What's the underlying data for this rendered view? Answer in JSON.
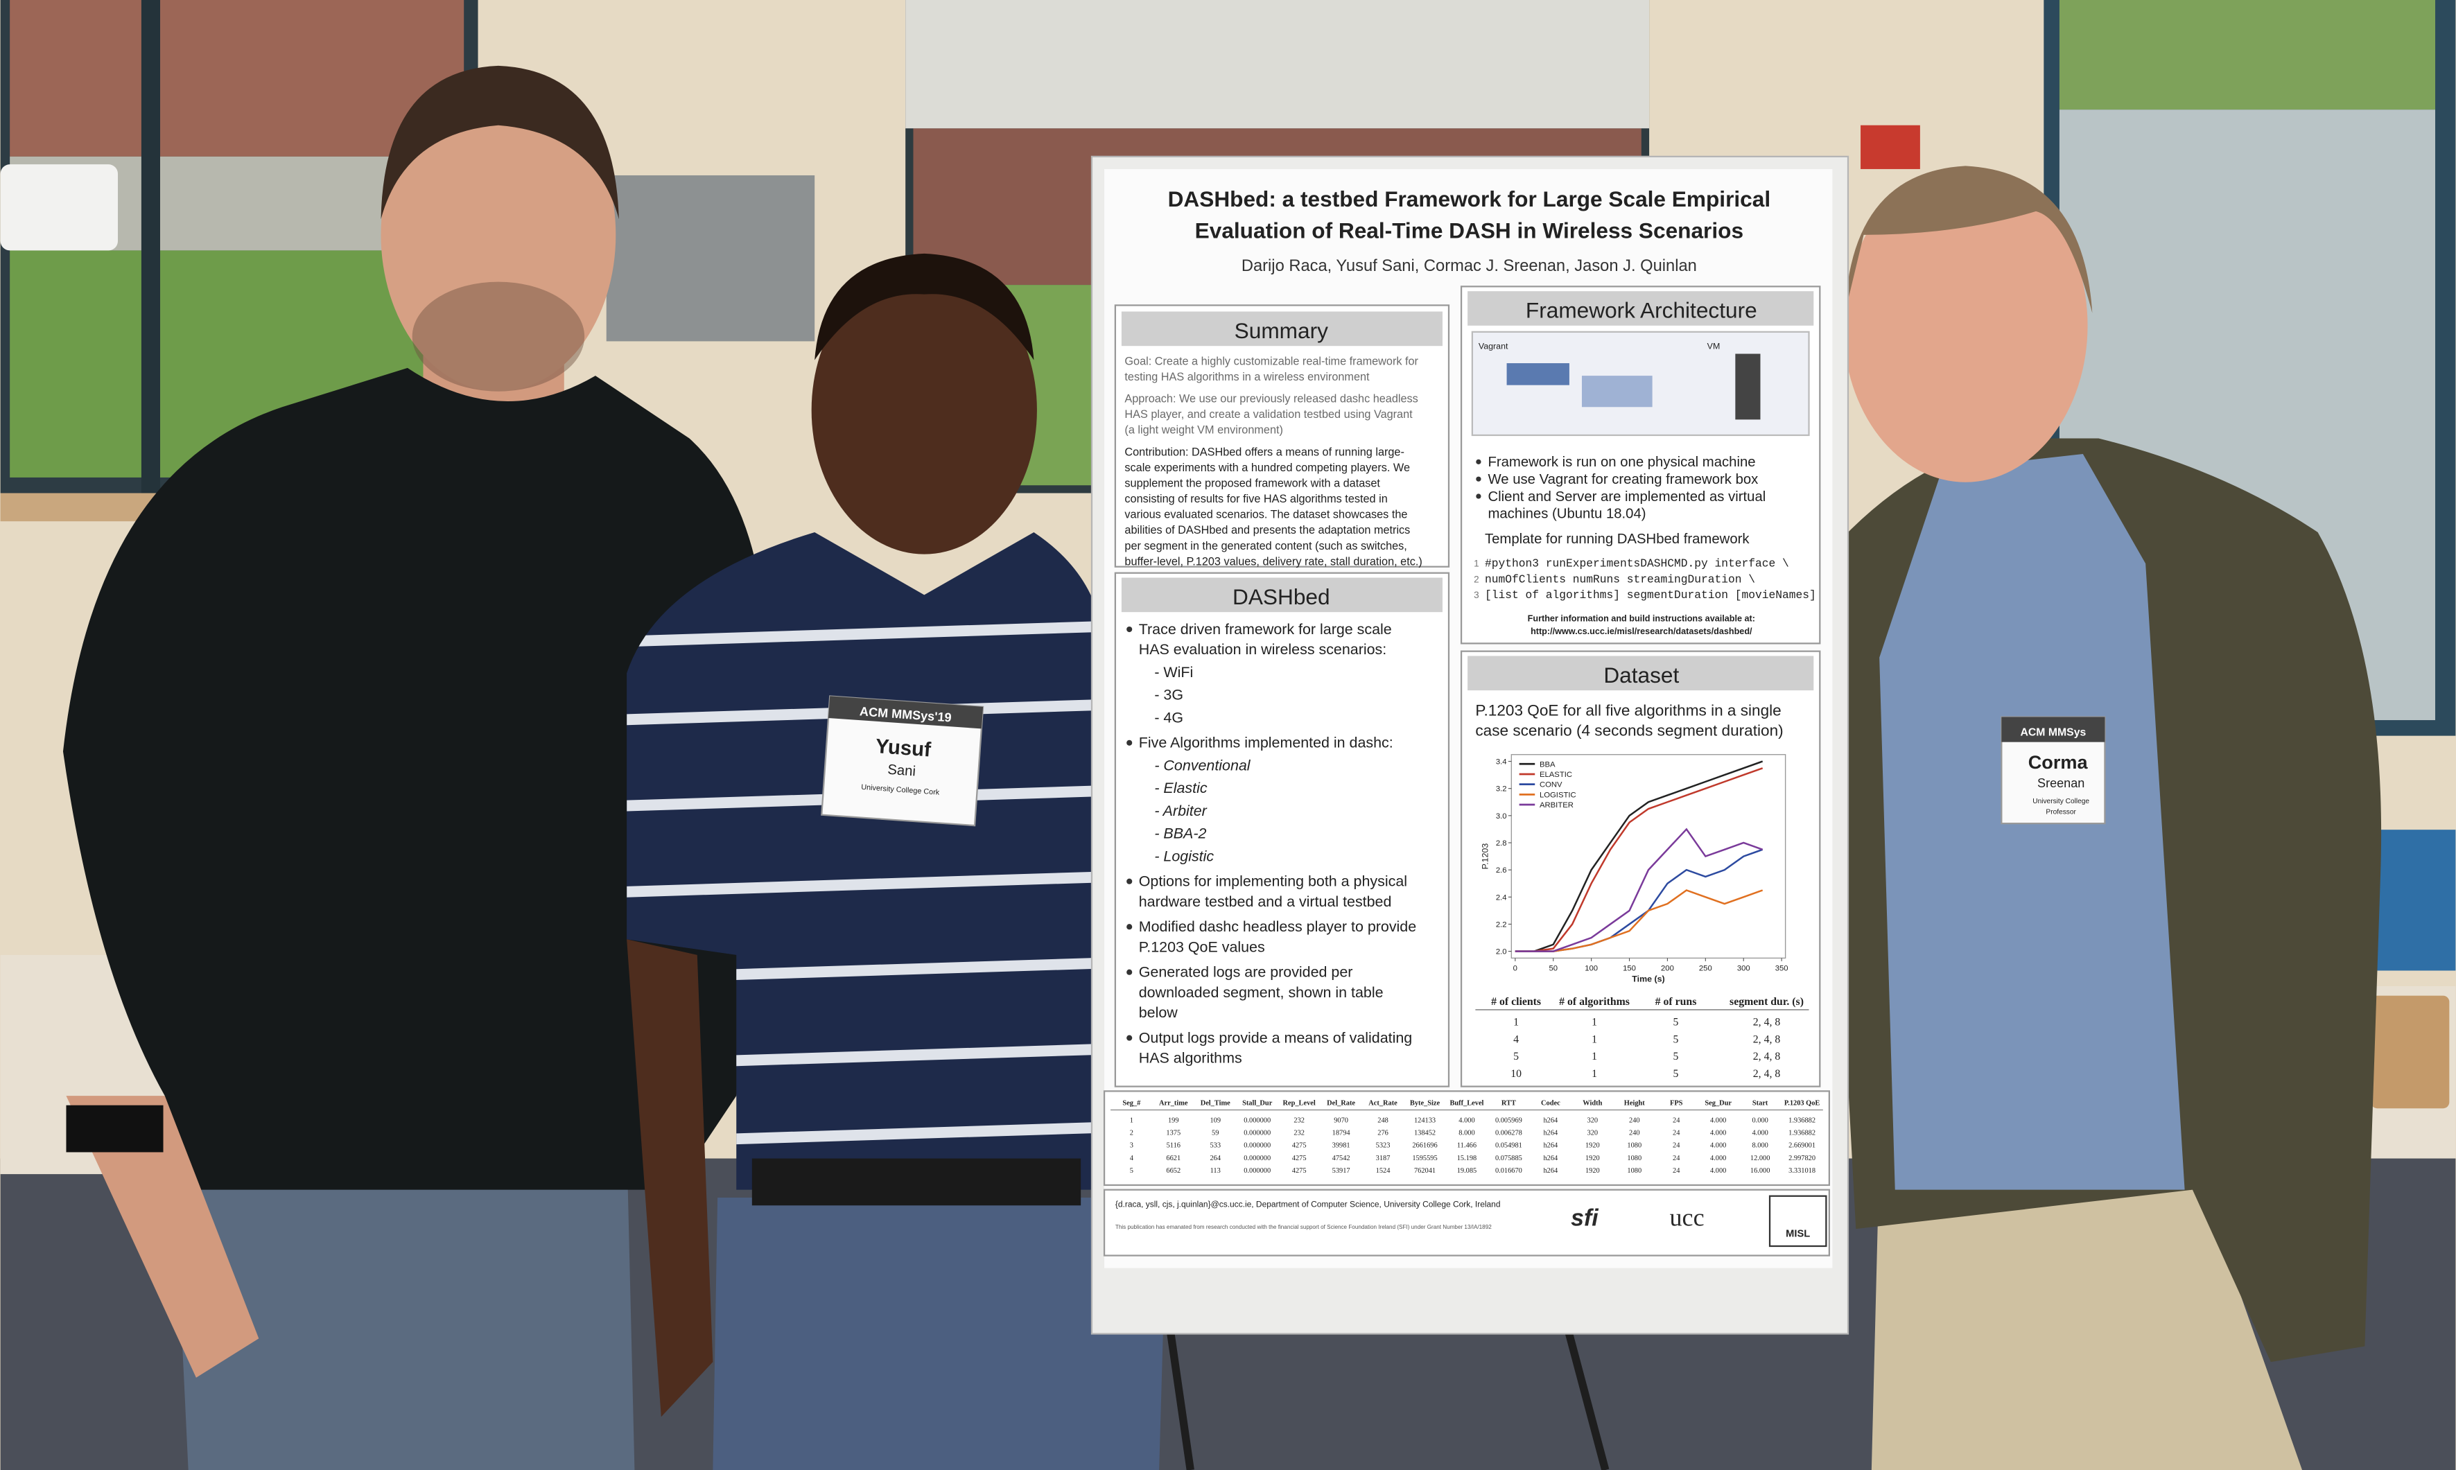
{
  "poster": {
    "title": [
      "DASHbed: a testbed Framework for Large Scale Empirical",
      "Evaluation of Real-Time DASH in Wireless Scenarios"
    ],
    "authors": "Darijo Raca, Yusuf Sani, Cormac J. Sreenan, Jason J. Quinlan",
    "summary": {
      "heading": "Summary",
      "paragraphs": [
        [
          "Goal: Create a highly customizable real-time framework for",
          "testing HAS algorithms in a wireless environment"
        ],
        [
          "Approach: We use our previously released dashc headless",
          "HAS player, and create a validation testbed using Vagrant",
          "(a light weight VM environment)"
        ],
        [
          "Contribution: DASHbed offers a means of running large-",
          "scale experiments with a hundred competing players. We",
          "supplement the proposed framework with a dataset",
          "consisting of results for five HAS algorithms tested in",
          "various evaluated scenarios. The dataset showcases the",
          "abilities of DASHbed and presents the adaptation metrics",
          "per segment in the generated content (such as switches,",
          "buffer-level, P.1203 values, delivery rate, stall duration, etc.)"
        ]
      ]
    },
    "dashbed": {
      "heading": "DASHbed",
      "items": [
        {
          "lines": [
            "Trace driven framework for large scale",
            "HAS evaluation in wireless scenarios:"
          ],
          "sub": [
            "- WiFi",
            "- 3G",
            "- 4G"
          ]
        },
        {
          "lines": [
            "Five Algorithms implemented in dashc:"
          ],
          "sub": [
            "- Conventional",
            "- Elastic",
            "- Arbiter",
            "- BBA-2",
            "- Logistic"
          ]
        },
        {
          "lines": [
            "Options for implementing both a physical",
            "hardware testbed and a virtual testbed"
          ]
        },
        {
          "lines": [
            "Modified dashc headless player to provide",
            "P.1203 QoE values"
          ]
        },
        {
          "lines": [
            "Generated logs are provided per",
            "downloaded segment, shown in table",
            "below"
          ]
        },
        {
          "lines": [
            "Output logs provide a means of validating",
            "HAS algorithms"
          ]
        }
      ]
    },
    "framework": {
      "heading": "Framework Architecture",
      "diagram": [
        "Vagrant",
        "VM"
      ],
      "bullets": [
        [
          "Framework is run on one physical machine"
        ],
        [
          "We use Vagrant for creating framework box"
        ],
        [
          "Client and Server are implemented as virtual",
          "machines (Ubuntu 18.04)"
        ]
      ],
      "template_heading": "Template for running DASHbed framework",
      "code_numbers": [
        1,
        2,
        3
      ],
      "code": [
        "#python3 runExperimentsDASHCMD.py interface \\",
        "numOfClients numRuns streamingDuration \\",
        "[list of algorithms] segmentDuration [movieNames]"
      ],
      "info": [
        "Further information and build instructions available at:",
        "http://www.cs.ucc.ie/misl/research/datasets/dashbed/"
      ]
    },
    "dataset": {
      "heading": "Dataset",
      "caption": [
        "P.1203 QoE for all five algorithms in a single",
        "case scenario (4 seconds segment duration)"
      ],
      "chart": {
        "type": "line",
        "y_label": "P.1203",
        "x_label": "Time (s)",
        "x": [
          0,
          25,
          50,
          75,
          100,
          125,
          150,
          175,
          200,
          225,
          250,
          275,
          300,
          325
        ],
        "series": [
          {
            "name": "BBA",
            "color": "#222222",
            "values": [
              2.0,
              2.0,
              2.05,
              2.3,
              2.6,
              2.8,
              3.0,
              3.1,
              3.15,
              3.2,
              3.25,
              3.3,
              3.35,
              3.4
            ]
          },
          {
            "name": "ELASTIC",
            "color": "#c0392b",
            "values": [
              2.0,
              2.0,
              2.02,
              2.2,
              2.5,
              2.75,
              2.95,
              3.05,
              3.1,
              3.15,
              3.2,
              3.25,
              3.3,
              3.35
            ]
          },
          {
            "name": "CONV",
            "color": "#2c4aa0",
            "values": [
              2.0,
              2.0,
              2.0,
              2.02,
              2.05,
              2.1,
              2.2,
              2.3,
              2.5,
              2.6,
              2.55,
              2.6,
              2.7,
              2.75
            ]
          },
          {
            "name": "LOGISTIC",
            "color": "#e07020",
            "values": [
              2.0,
              2.0,
              2.0,
              2.02,
              2.05,
              2.1,
              2.15,
              2.3,
              2.35,
              2.45,
              2.4,
              2.35,
              2.4,
              2.45
            ]
          },
          {
            "name": "ARBITER",
            "color": "#7a3a9a",
            "values": [
              2.0,
              2.0,
              2.0,
              2.05,
              2.1,
              2.2,
              2.3,
              2.6,
              2.75,
              2.9,
              2.7,
              2.75,
              2.8,
              2.75
            ]
          }
        ],
        "xlim": [
          -5,
          355
        ],
        "ylim": [
          1.95,
          3.45
        ],
        "xticks": [
          0,
          50,
          100,
          150,
          200,
          250,
          300,
          350
        ],
        "yticks": [
          {
            "value": 2,
            "label": "2.0"
          },
          2.2,
          2.4,
          2.6,
          2.8,
          {
            "value": 3,
            "label": "3.0"
          },
          3.2,
          3.4
        ]
      },
      "table": {
        "header": [
          "# of clients",
          "# of algorithms",
          "# of runs",
          "segment dur. (s)"
        ],
        "rows": [
          [
            1,
            1,
            5,
            "2, 4, 8"
          ],
          [
            4,
            1,
            5,
            "2, 4, 8"
          ],
          [
            5,
            1,
            5,
            "2, 4, 8"
          ],
          [
            10,
            1,
            5,
            "2, 4, 8"
          ]
        ]
      }
    },
    "log_table": {
      "header": [
        "Seg_#",
        "Arr_time",
        "Del_Time",
        "Stall_Dur",
        "Rep_Level",
        "Del_Rate",
        "Act_Rate",
        "Byte_Size",
        "Buff_Level",
        "RTT",
        "Codec",
        "Width",
        "Height",
        "FPS",
        "Seg_Dur",
        "Start",
        "P.1203 QoE"
      ],
      "rows": [
        [
          "1",
          "199",
          "109",
          "0.000000",
          "232",
          "9070",
          "248",
          "124133",
          "4.000",
          "0.005969",
          "h264",
          "320",
          "240",
          "24",
          "4.000",
          "0.000",
          "1.936882"
        ],
        [
          "2",
          "1375",
          "59",
          "0.000000",
          "232",
          "18794",
          "276",
          "138452",
          "8.000",
          "0.006278",
          "h264",
          "320",
          "240",
          "24",
          "4.000",
          "4.000",
          "1.936882"
        ],
        [
          "3",
          "5116",
          "533",
          "0.000000",
          "4275",
          "39981",
          "5323",
          "2661696",
          "11.466",
          "0.054981",
          "h264",
          "1920",
          "1080",
          "24",
          "4.000",
          "8.000",
          "2.669001"
        ],
        [
          "4",
          "6621",
          "264",
          "0.000000",
          "4275",
          "47542",
          "3187",
          "1595595",
          "15.198",
          "0.075885",
          "h264",
          "1920",
          "1080",
          "24",
          "4.000",
          "12.000",
          "2.997820"
        ],
        [
          "5",
          "6652",
          "113",
          "0.000000",
          "4275",
          "53917",
          "1524",
          "762041",
          "19.085",
          "0.016670",
          "h264",
          "1920",
          "1080",
          "24",
          "4.000",
          "16.000",
          "3.331018"
        ]
      ]
    },
    "footer": {
      "contact": "{d.raca, ysll, cjs, j.quinlan}@cs.ucc.ie, Department of Computer Science, University College Cork, Ireland",
      "funding": "This publication has emanated from research conducted with the financial support of Science Foundation Ireland (SFI) under Grant Number 13/IA/1892",
      "logos": [
        "sfi",
        "ucc",
        "MISL"
      ]
    }
  },
  "badges": [
    {
      "event": "ACM MMSys'19",
      "first_name": "Yusuf",
      "last_name": "Sani",
      "affiliation": "University College Cork"
    },
    {
      "event": "ACM MMSys",
      "first_name": "Corma",
      "last_name": "Sreenan",
      "affiliation": "University College",
      "role": "Professor"
    }
  ]
}
